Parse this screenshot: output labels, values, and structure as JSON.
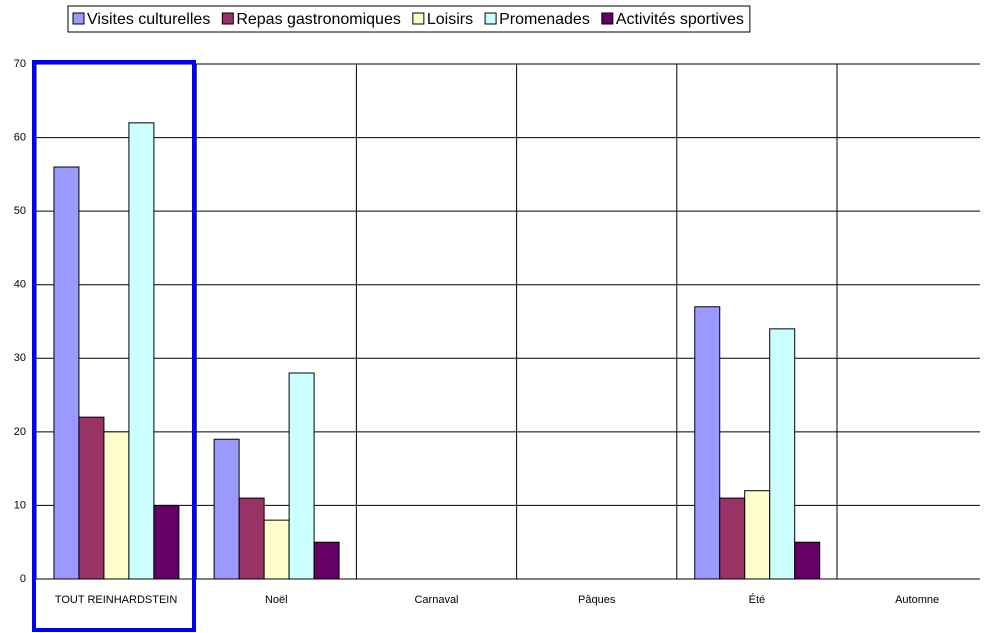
{
  "chart_data": {
    "type": "bar",
    "categories": [
      "TOUT REINHARDSTEIN",
      "Noël",
      "Carnaval",
      "Pâques",
      "Été",
      "Automne"
    ],
    "series": [
      {
        "name": "Visites culturelles",
        "color": "#9999ff",
        "values": [
          56,
          19,
          null,
          null,
          37,
          null
        ]
      },
      {
        "name": "Repas gastronomiques",
        "color": "#993366",
        "values": [
          22,
          11,
          null,
          null,
          11,
          null
        ]
      },
      {
        "name": "Loisirs",
        "color": "#ffffcc",
        "values": [
          20,
          8,
          null,
          null,
          12,
          null
        ]
      },
      {
        "name": "Promenades",
        "color": "#ccffff",
        "values": [
          62,
          28,
          null,
          null,
          34,
          null
        ]
      },
      {
        "name": "Activités sportives",
        "color": "#660066",
        "values": [
          10,
          5,
          null,
          null,
          5,
          null
        ]
      }
    ],
    "ylim": [
      0,
      70
    ],
    "yticks": [
      0,
      10,
      20,
      30,
      40,
      50,
      60,
      70
    ],
    "grid": true,
    "legend": "top"
  }
}
